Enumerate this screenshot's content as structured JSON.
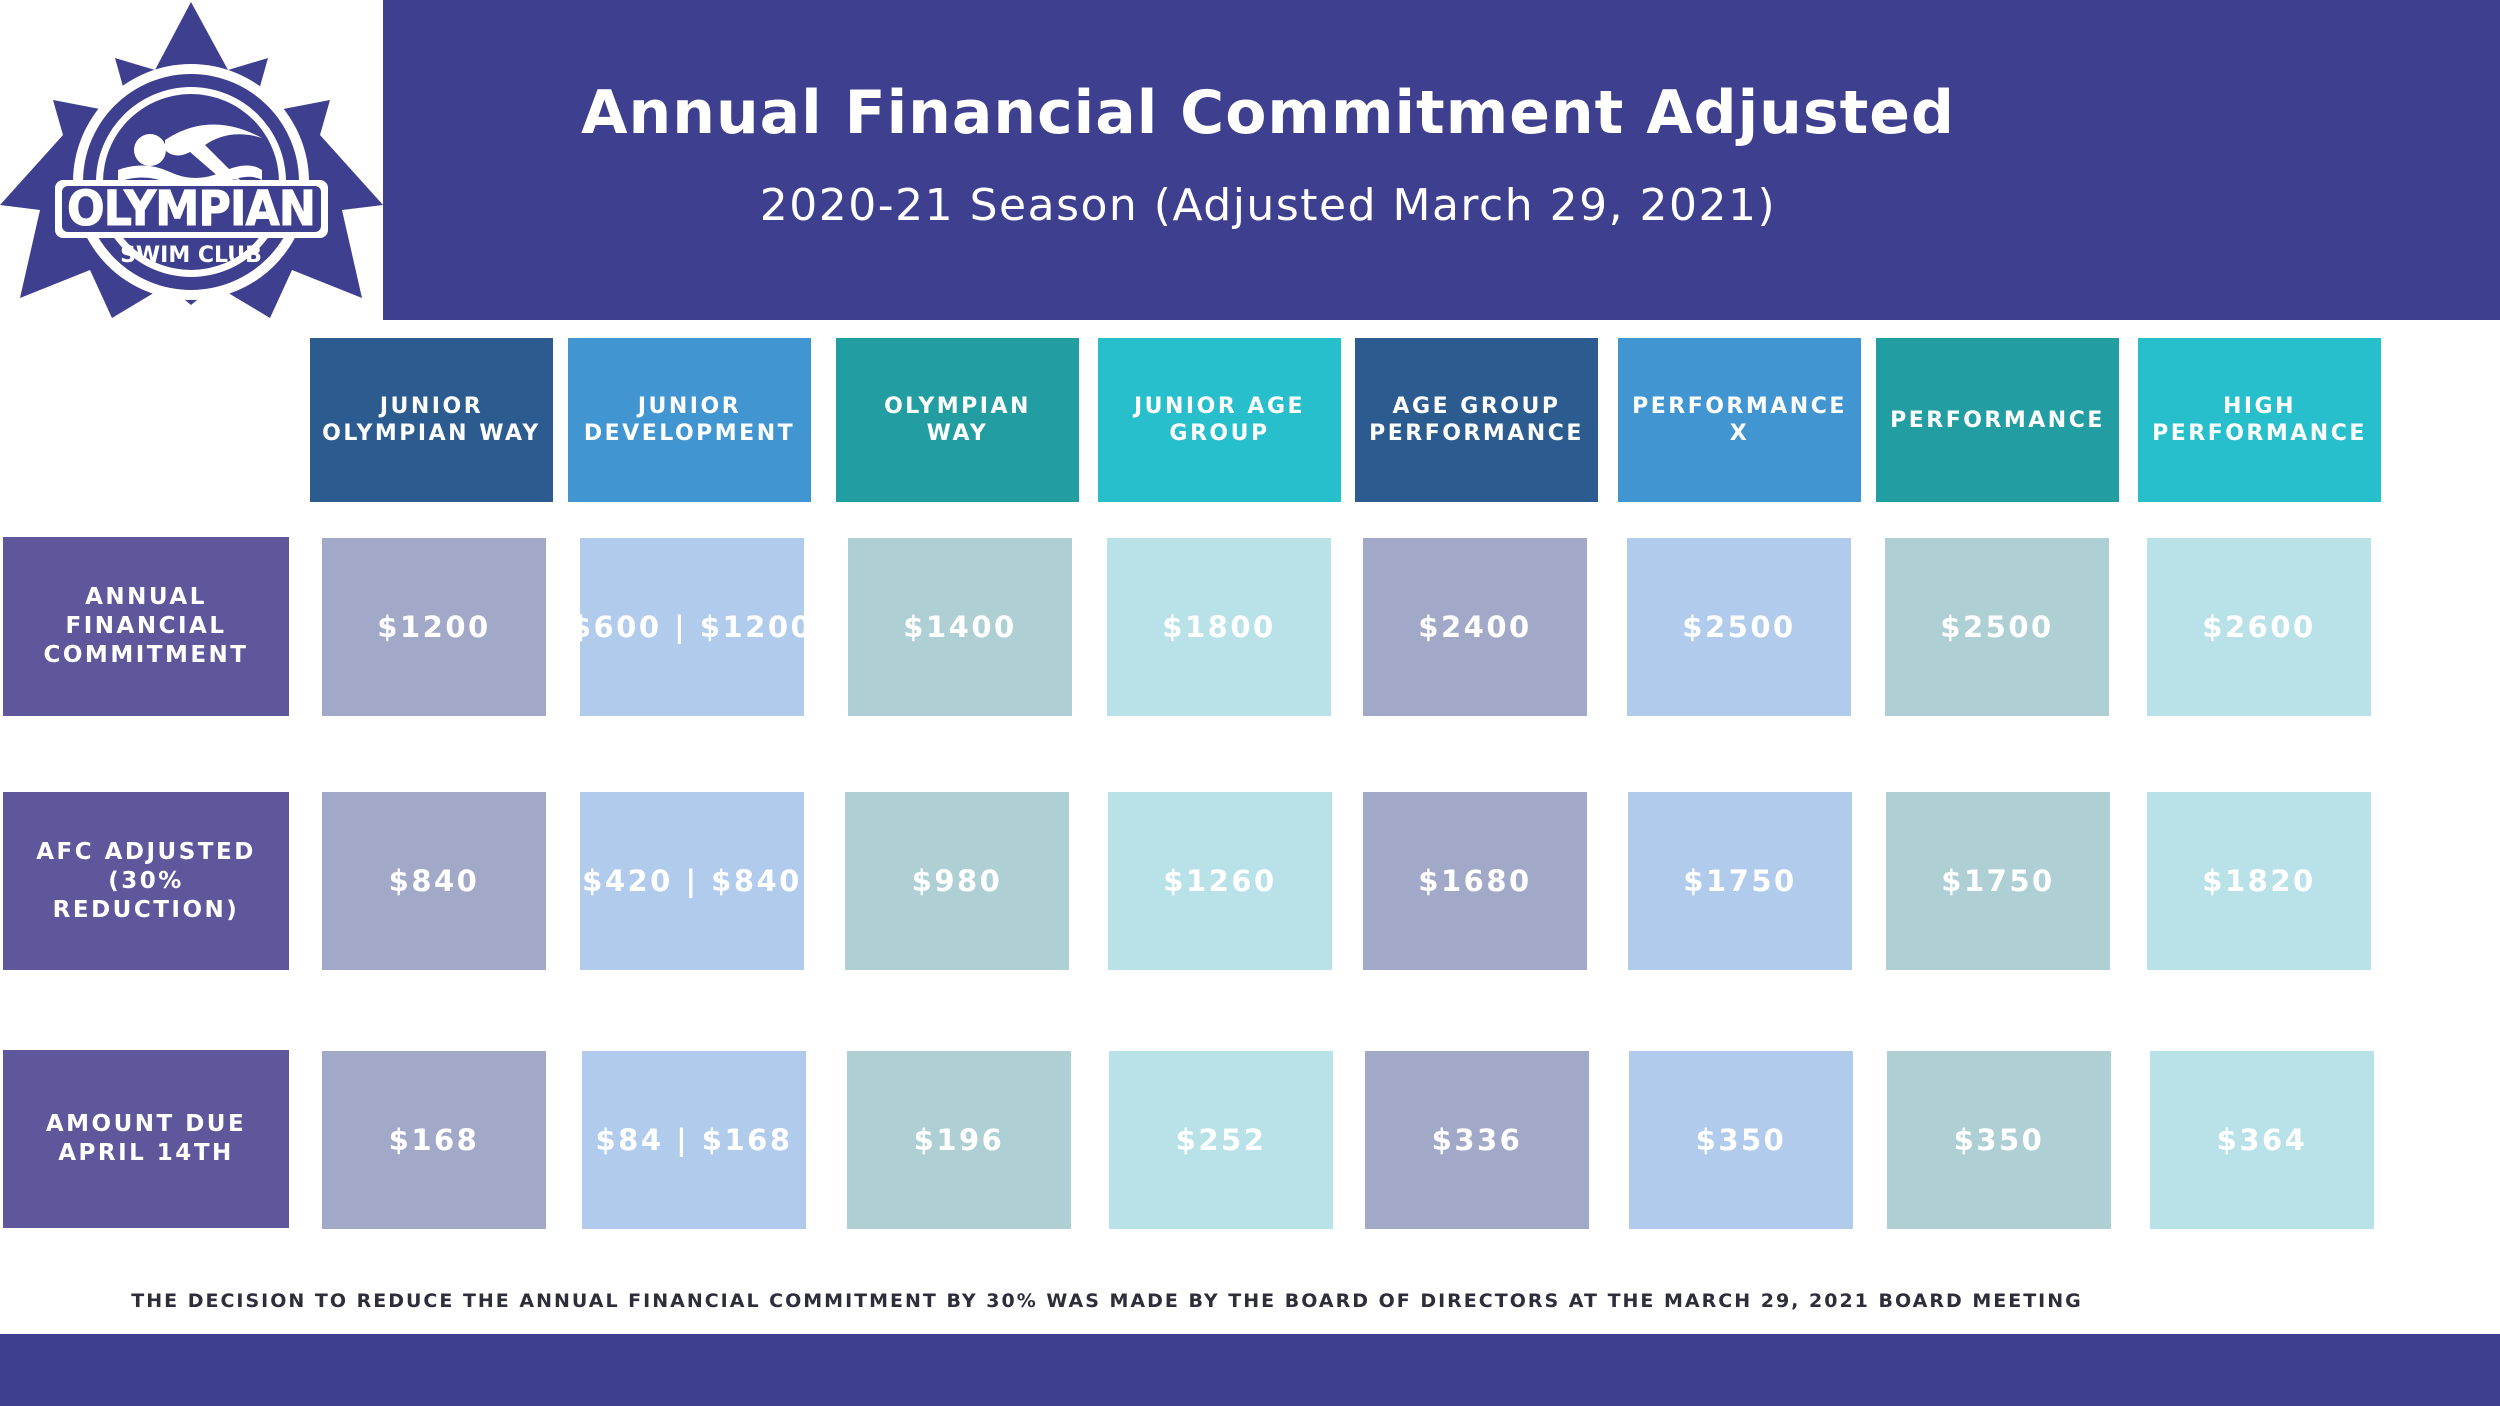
{
  "header": {
    "title": "Annual Financial Commitment Adjusted",
    "subtitle": "2020-21 Season (Adjusted March 29, 2021)"
  },
  "logo": {
    "name": "OLYMPIAN",
    "tagline": "SWIM CLUB",
    "color": "#3e3f8e"
  },
  "columns": [
    {
      "label": "JUNIOR\nOLYMPIAN WAY",
      "color": "#2c5b8f"
    },
    {
      "label": "JUNIOR\nDEVELOPMENT",
      "color": "#4196d2"
    },
    {
      "label": "OLYMPIAN\nWAY",
      "color": "#229ea2"
    },
    {
      "label": "JUNIOR AGE\nGROUP",
      "color": "#26bfcb"
    },
    {
      "label": "AGE GROUP\nPERFORMANCE",
      "color": "#2c5b8f"
    },
    {
      "label": "PERFORMANCE\nX",
      "color": "#4196d2"
    },
    {
      "label": "PERFORMANCE",
      "color": "#229ea2"
    },
    {
      "label": "HIGH\nPERFORMANCE",
      "color": "#26bfcb"
    }
  ],
  "cell_colors": [
    "#a2a9c8",
    "#b1cbec",
    "#aecfd3",
    "#b8e2e8",
    "#a2a9c8",
    "#b1cbec",
    "#aecfd3",
    "#b8e2e8"
  ],
  "rows": [
    {
      "label": "ANNUAL\nFINANCIAL\nCOMMITMENT",
      "values": [
        "$1200",
        "$600 | $1200",
        "$1400",
        "$1800",
        "$2400",
        "$2500",
        "$2500",
        "$2600"
      ]
    },
    {
      "label": "AFC ADJUSTED\n(30% REDUCTION)",
      "values": [
        "$840",
        "$420 | $840",
        "$980",
        "$1260",
        "$1680",
        "$1750",
        "$1750",
        "$1820"
      ]
    },
    {
      "label": "AMOUNT DUE\nAPRIL 14TH",
      "values": [
        "$168",
        "$84 | $168",
        "$196",
        "$252",
        "$336",
        "$350",
        "$350",
        "$364"
      ]
    }
  ],
  "footnote": "THE DECISION TO REDUCE THE ANNUAL FINANCIAL COMMITMENT BY 30% WAS MADE BY THE BOARD OF DIRECTORS AT THE MARCH 29, 2021 BOARD MEETING"
}
